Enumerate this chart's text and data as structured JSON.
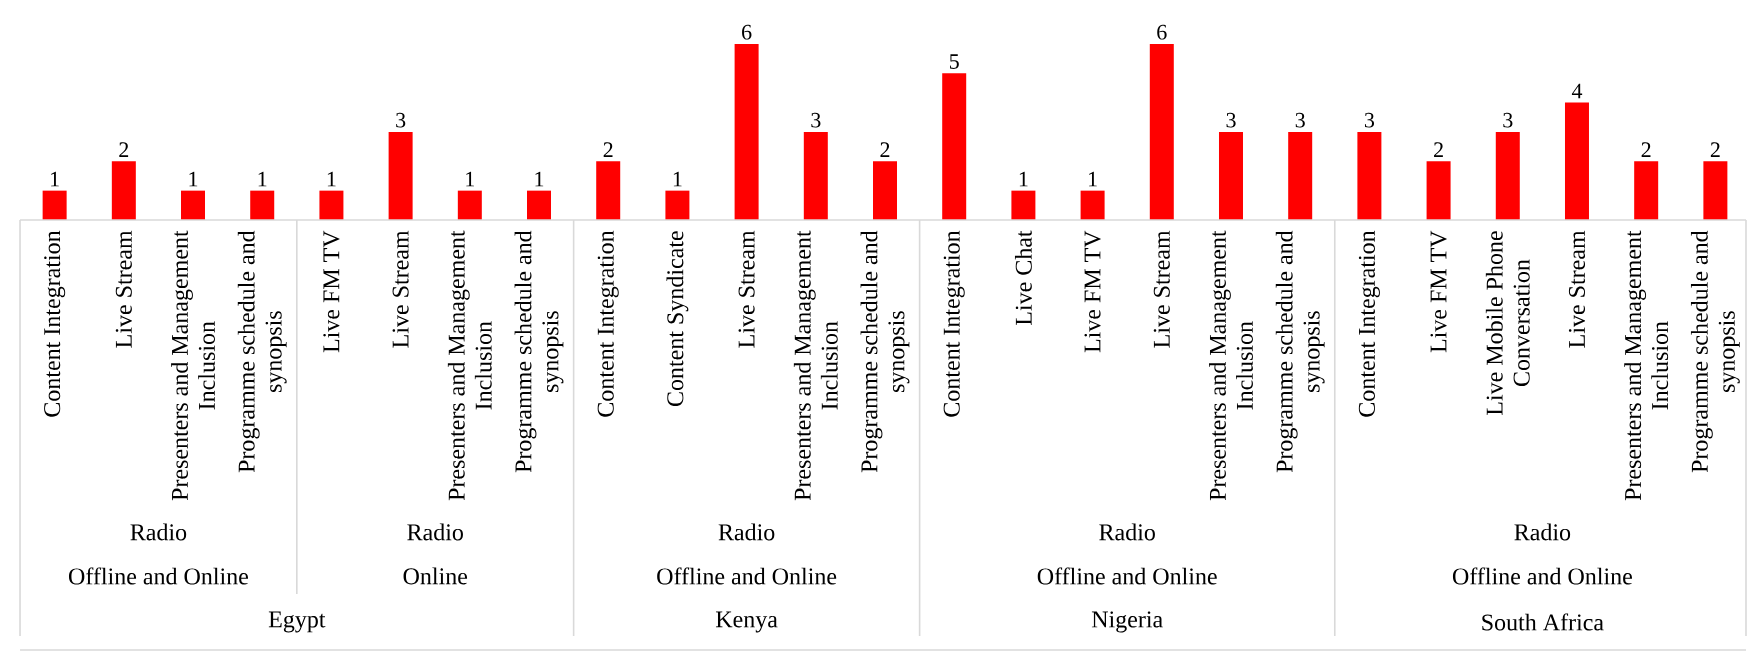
{
  "chart_data": {
    "type": "bar",
    "color": "#ff0000",
    "data_labels": true,
    "categories": [
      "Content Integration",
      "Live Stream",
      "Presenters and Management Inclusion",
      "Programme schedule and synopsis",
      "Live FM TV",
      "Live Stream",
      "Presenters and Management Inclusion",
      "Programme schedule and synopsis",
      "Content Integration",
      "Content Syndicate",
      "Live Stream",
      "Presenters and Management Inclusion",
      "Programme schedule and synopsis",
      "Content Integration",
      "Live Chat",
      "Live FM TV",
      "Live Stream",
      "Presenters and Management Inclusion",
      "Programme schedule and synopsis",
      "Content Integration",
      "Live FM TV",
      "Live Mobile Phone Conversation",
      "Live Stream",
      "Presenters and Management Inclusion",
      "Programme schedule and synopsis"
    ],
    "values": [
      1,
      2,
      1,
      1,
      1,
      3,
      1,
      1,
      2,
      1,
      6,
      3,
      2,
      5,
      1,
      1,
      6,
      3,
      3,
      3,
      2,
      3,
      4,
      2,
      2
    ],
    "annotations": [
      "Radio",
      "Radio",
      "Radio",
      "Radio",
      "Radio",
      "Offline and Online",
      "Online",
      "Offline and Online",
      "Offline and Online",
      "Offline and Online",
      "Egypt",
      "Kenya",
      "Nigeria",
      "South Africa"
    ]
  }
}
